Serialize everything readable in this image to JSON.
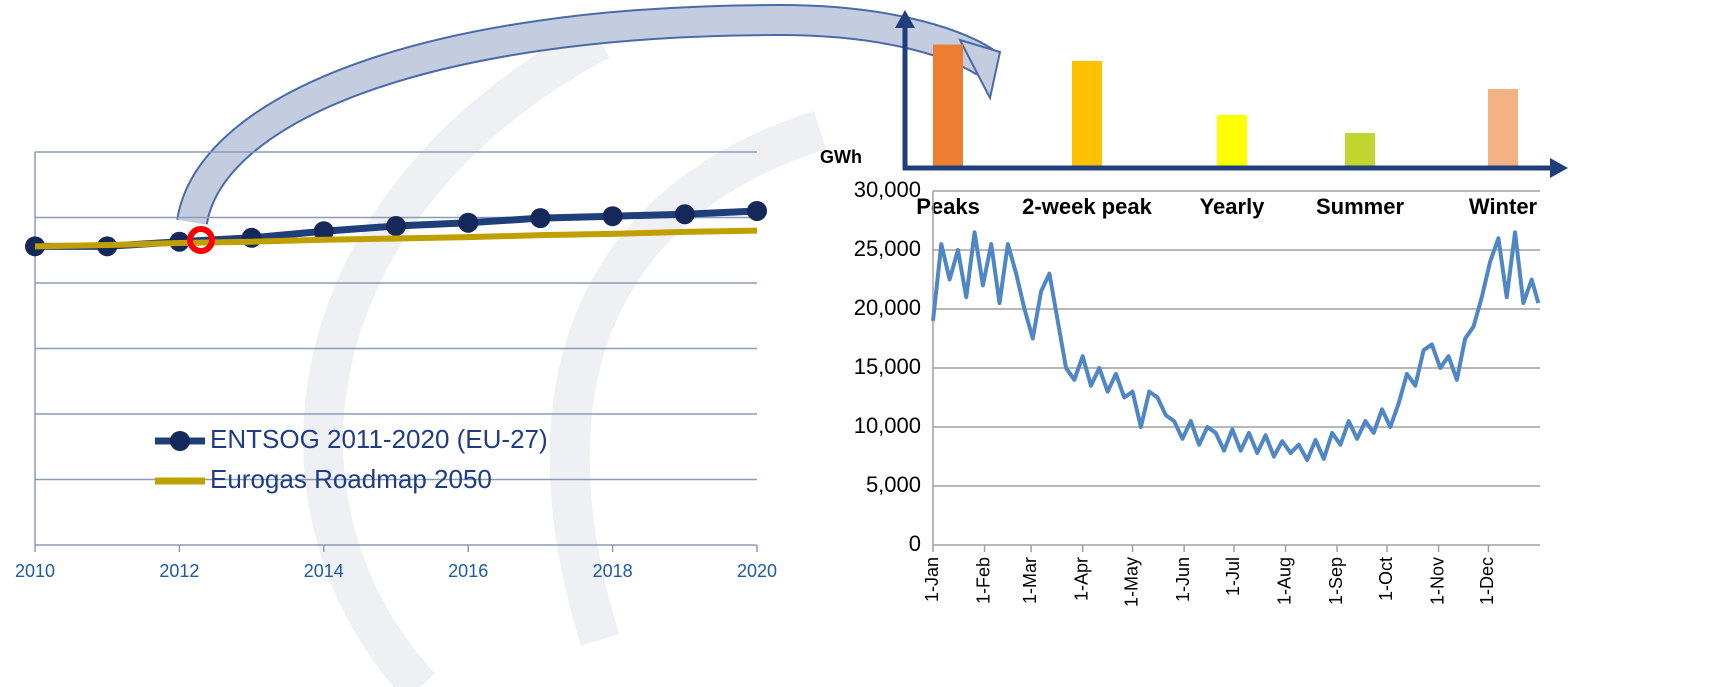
{
  "chart_data": [
    {
      "type": "line",
      "x": [
        2010,
        2011,
        2012,
        2013,
        2014,
        2015,
        2016,
        2017,
        2018,
        2019,
        2020
      ],
      "xlim": [
        2010,
        2020
      ],
      "xticks": [
        2010,
        2012,
        2014,
        2016,
        2018,
        2020
      ],
      "ylim": [
        0,
        6
      ],
      "yticks": [
        0,
        1,
        2,
        3,
        4,
        5,
        6
      ],
      "grid": true,
      "series": [
        {
          "name": "ENTSOG 2011-2020 (EU-27)",
          "color": "#1f3f7a",
          "markers": true,
          "values": [
            4.56,
            4.56,
            4.63,
            4.69,
            4.79,
            4.87,
            4.92,
            4.99,
            5.02,
            5.05,
            5.1
          ]
        },
        {
          "name": "Eurogas Roadmap 2050",
          "color": "#bfa000",
          "markers": false,
          "values": [
            4.56,
            4.58,
            4.61,
            4.63,
            4.66,
            4.68,
            4.7,
            4.73,
            4.75,
            4.78,
            4.8
          ]
        }
      ]
    },
    {
      "type": "bar",
      "categories": [
        "Peaks",
        "2-week peak",
        "Yearly",
        "Summer",
        "Winter"
      ],
      "values": [
        27000,
        23400,
        11500,
        7500,
        17200
      ],
      "colors": [
        "#ed7d31",
        "#ffc000",
        "#ffff00",
        "#c0d530",
        "#f4b183"
      ],
      "ylim": [
        0,
        30000
      ]
    },
    {
      "type": "line",
      "y_label": "GWh",
      "x": [
        0,
        5,
        10,
        15,
        20,
        25,
        30,
        35,
        40,
        45,
        50,
        55,
        60,
        65,
        70,
        75,
        80,
        85,
        90,
        95,
        100,
        105,
        110,
        115,
        120,
        125,
        130,
        135,
        140,
        145,
        150,
        155,
        160,
        165,
        170,
        175,
        180,
        185,
        190,
        195,
        200,
        205,
        210,
        215,
        220,
        225,
        230,
        235,
        240,
        245,
        250,
        255,
        260,
        265,
        270,
        275,
        280,
        285,
        290,
        295,
        300,
        305,
        310,
        315,
        320,
        325,
        330,
        335,
        340,
        345,
        350,
        355,
        360,
        364
      ],
      "xlim": [
        0,
        365
      ],
      "xticks": [
        {
          "value": 0,
          "label": "1-Jan"
        },
        {
          "value": 31,
          "label": "1-Feb"
        },
        {
          "value": 59,
          "label": "1-Mar"
        },
        {
          "value": 90,
          "label": "1-Apr"
        },
        {
          "value": 120,
          "label": "1-May"
        },
        {
          "value": 151,
          "label": "1-Jun"
        },
        {
          "value": 181,
          "label": "1-Jul"
        },
        {
          "value": 212,
          "label": "1-Aug"
        },
        {
          "value": 243,
          "label": "1-Sep"
        },
        {
          "value": 273,
          "label": "1-Oct"
        },
        {
          "value": 304,
          "label": "1-Nov"
        },
        {
          "value": 334,
          "label": "1-Dec"
        }
      ],
      "ylim": [
        0,
        30000
      ],
      "yticks": [
        0,
        {
          "value": 5000,
          "label": "5,000"
        },
        {
          "value": 10000,
          "label": "10,000"
        },
        {
          "value": 15000,
          "label": "15,000"
        },
        {
          "value": 20000,
          "label": "20,000"
        },
        {
          "value": 25000,
          "label": "25,000"
        },
        {
          "value": 30000,
          "label": "30,000"
        }
      ],
      "grid": true,
      "series": [
        {
          "color": "#4f86c6",
          "markers": false,
          "values": [
            19000,
            25500,
            22500,
            25000,
            21000,
            26500,
            22000,
            25500,
            20500,
            25500,
            23000,
            20000,
            17500,
            21500,
            23000,
            19000,
            15000,
            14000,
            16000,
            13500,
            15000,
            13000,
            14500,
            12500,
            13000,
            10000,
            13000,
            12500,
            11000,
            10500,
            9000,
            10500,
            8500,
            10000,
            9500,
            8000,
            9800,
            8000,
            9500,
            7800,
            9300,
            7500,
            8800,
            7800,
            8500,
            7200,
            8900,
            7300,
            9500,
            8500,
            10500,
            9000,
            10500,
            9500,
            11500,
            10000,
            12000,
            14500,
            13500,
            16500,
            17000,
            15000,
            16000,
            14000,
            17500,
            18500,
            21000,
            24000,
            26000,
            21000,
            26500,
            20500,
            22500,
            20500
          ]
        }
      ]
    }
  ]
}
